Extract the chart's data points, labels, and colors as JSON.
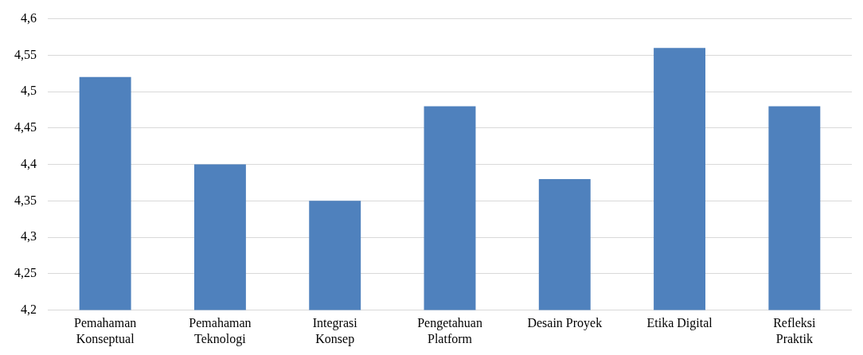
{
  "chart_data": {
    "type": "bar",
    "categories": [
      "Pemahaman Konseptual",
      "Pemahaman Teknologi",
      "Integrasi Konsep",
      "Pengetahuan Platform",
      "Desain Proyek",
      "Etika Digital",
      "Refleksi Praktik"
    ],
    "values": [
      4.52,
      4.4,
      4.35,
      4.48,
      4.38,
      4.56,
      4.48
    ],
    "color": "#4f81bd",
    "ylim": [
      4.2,
      4.6
    ],
    "yticks": [
      {
        "value": 4.2,
        "label": "4,2"
      },
      {
        "value": 4.25,
        "label": "4,25"
      },
      {
        "value": 4.3,
        "label": "4,3"
      },
      {
        "value": 4.35,
        "label": "4,35"
      },
      {
        "value": 4.4,
        "label": "4,4"
      },
      {
        "value": 4.45,
        "label": "4,45"
      },
      {
        "value": 4.5,
        "label": "4,5"
      },
      {
        "value": 4.55,
        "label": "4,55"
      },
      {
        "value": 4.6,
        "label": "4,6"
      }
    ],
    "grid": "y"
  }
}
